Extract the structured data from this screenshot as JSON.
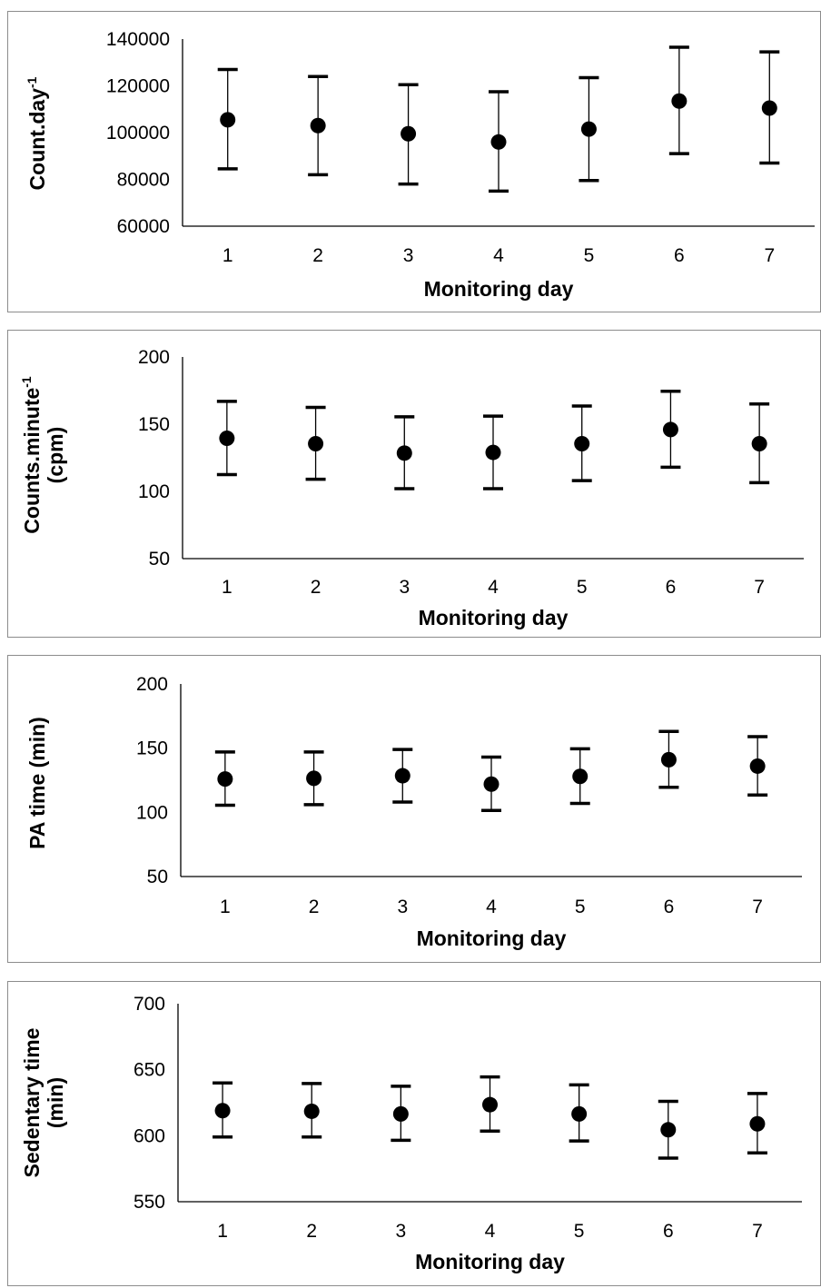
{
  "chart_data": [
    {
      "type": "scatter",
      "error_bars": true,
      "title": "",
      "xlabel": "Monitoring day",
      "ylabel": "Count.day",
      "ylabel_superscript": "-1",
      "ylim": [
        60000,
        140000
      ],
      "yticks": [
        "60000",
        "80000",
        "100000",
        "120000",
        "140000"
      ],
      "yticks_values": [
        60000,
        80000,
        100000,
        120000,
        140000
      ],
      "categories": [
        "1",
        "2",
        "3",
        "4",
        "5",
        "6",
        "7"
      ],
      "mean": [
        105500,
        103000,
        99500,
        96000,
        101500,
        113500,
        110500
      ],
      "upper": [
        127000,
        124000,
        120500,
        117500,
        123500,
        136500,
        134500
      ],
      "lower": [
        84500,
        82000,
        78000,
        75000,
        79500,
        91000,
        87000
      ],
      "grid": false
    },
    {
      "type": "scatter",
      "error_bars": true,
      "title": "",
      "xlabel": "Monitoring day",
      "ylabel": "Counts.minute",
      "ylabel_superscript": "-1",
      "ylabel_line2": "(cpm)",
      "ylim": [
        50,
        200
      ],
      "yticks": [
        "50",
        "100",
        "150",
        "200"
      ],
      "yticks_values": [
        50,
        100,
        150,
        200
      ],
      "categories": [
        "1",
        "2",
        "3",
        "4",
        "5",
        "6",
        "7"
      ],
      "mean": [
        139.5,
        135.5,
        128.5,
        129,
        135.5,
        146,
        135.5
      ],
      "upper": [
        167,
        162.5,
        155.5,
        156,
        163.5,
        174.5,
        165
      ],
      "lower": [
        112.5,
        109,
        102,
        102,
        108,
        118,
        106.5
      ],
      "grid": false
    },
    {
      "type": "scatter",
      "error_bars": true,
      "title": "",
      "xlabel": "Monitoring day",
      "ylabel": "PA time (min)",
      "ylim": [
        50,
        200
      ],
      "yticks": [
        "50",
        "100",
        "150",
        "200"
      ],
      "yticks_values": [
        50,
        100,
        150,
        200
      ],
      "categories": [
        "1",
        "2",
        "3",
        "4",
        "5",
        "6",
        "7"
      ],
      "mean": [
        126,
        126.5,
        128.5,
        122,
        128,
        141,
        136
      ],
      "upper": [
        147,
        147,
        149,
        143,
        149.5,
        163,
        159
      ],
      "lower": [
        105.5,
        106,
        108,
        101.5,
        107,
        119.5,
        113.5
      ],
      "grid": false
    },
    {
      "type": "scatter",
      "error_bars": true,
      "title": "",
      "xlabel": "Monitoring day",
      "ylabel": "Sedentary time",
      "ylabel_line2": "(min)",
      "ylim": [
        550,
        700
      ],
      "yticks": [
        "550",
        "600",
        "650",
        "700"
      ],
      "yticks_values": [
        550,
        600,
        650,
        700
      ],
      "categories": [
        "1",
        "2",
        "3",
        "4",
        "5",
        "6",
        "7"
      ],
      "mean": [
        619,
        618.5,
        616.5,
        623.5,
        616.5,
        604.5,
        609
      ],
      "upper": [
        640,
        639.5,
        637.5,
        644.5,
        638.5,
        626,
        632
      ],
      "lower": [
        599,
        599,
        596.5,
        603.5,
        596,
        583,
        587
      ],
      "grid": false
    }
  ]
}
